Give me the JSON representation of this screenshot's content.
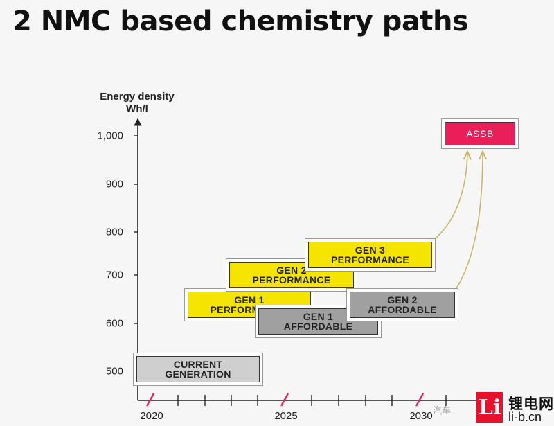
{
  "title": "2 NMC based chemistry paths",
  "axes": {
    "y_label_line1": "Energy density",
    "y_label_line2": "Wh/l",
    "y_ticks": [
      "1,000",
      "900",
      "800",
      "700",
      "600",
      "500"
    ],
    "x_ticks": [
      "2020",
      "2025",
      "2030"
    ]
  },
  "boxes": [
    {
      "id": "current",
      "line1": "CURRENT",
      "line2": "GENERATION",
      "color": "#cfcfcf"
    },
    {
      "id": "gen1perf",
      "line1": "GEN 1",
      "line2": "PERFORMANCE",
      "color": "#f5e400"
    },
    {
      "id": "gen1aff",
      "line1": "GEN 1",
      "line2": "AFFORDABLE",
      "color": "#a0a0a0"
    },
    {
      "id": "gen2perf",
      "line1": "GEN 2",
      "line2": "PERFORMANCE",
      "color": "#f5e400"
    },
    {
      "id": "gen3perf",
      "line1": "GEN 3",
      "line2": "PERFORMANCE",
      "color": "#f5e400"
    },
    {
      "id": "gen2aff",
      "line1": "GEN 2",
      "line2": "AFFORDABLE",
      "color": "#a0a0a0"
    },
    {
      "id": "assb",
      "line1": "ASSB",
      "line2": "",
      "color": "#ea1f5a"
    }
  ],
  "watermark": {
    "logo": "Li",
    "site_cn": "锂电网",
    "site_url": "li-b.cn",
    "caption": "汽车"
  }
}
